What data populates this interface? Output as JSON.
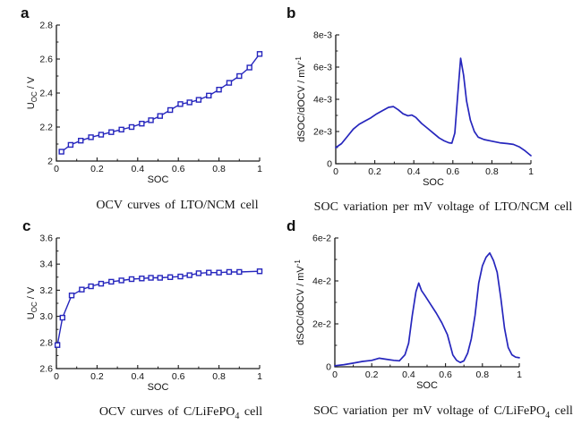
{
  "colors": {
    "curve": "#2626bd",
    "axis": "#1b1b1b",
    "text": "#111111",
    "background": "#ffffff"
  },
  "chart_data": [
    {
      "id": "a",
      "panel_label": "a",
      "type": "line",
      "xlabel": "SOC",
      "ylabel_parts": [
        {
          "t": "U"
        },
        {
          "t": "OC",
          "sub": true
        },
        {
          "t": " / V"
        }
      ],
      "xlim": [
        0,
        1
      ],
      "ylim": [
        2,
        2.8
      ],
      "xtick_values": [
        0,
        0.2,
        0.4,
        0.6,
        0.8,
        1
      ],
      "xtick_labels": [
        "0",
        "0.2",
        "0.4",
        "0.6",
        "0.8",
        "1"
      ],
      "ytick_values": [
        2,
        2.2,
        2.4,
        2.6,
        2.8
      ],
      "ytick_labels": [
        "2",
        "2.2",
        "2.4",
        "2.6",
        "2.8"
      ],
      "marker": "square",
      "grid": false,
      "x": [
        0.025,
        0.07,
        0.12,
        0.17,
        0.22,
        0.27,
        0.32,
        0.37,
        0.42,
        0.465,
        0.51,
        0.56,
        0.61,
        0.655,
        0.7,
        0.75,
        0.8,
        0.85,
        0.9,
        0.95,
        1.0
      ],
      "y": [
        2.055,
        2.095,
        2.12,
        2.14,
        2.155,
        2.17,
        2.185,
        2.2,
        2.22,
        2.24,
        2.265,
        2.3,
        2.335,
        2.345,
        2.36,
        2.385,
        2.42,
        2.46,
        2.5,
        2.55,
        2.63
      ],
      "caption_parts": [
        {
          "t": "OCV curves of LTO/NCM cell"
        }
      ]
    },
    {
      "id": "b",
      "panel_label": "b",
      "type": "line",
      "xlabel": "SOC",
      "ylabel_parts": [
        {
          "t": "dSOC/dOCV / mV"
        },
        {
          "t": "-1",
          "sup": true
        }
      ],
      "xlim": [
        0,
        1
      ],
      "ylim": [
        0,
        0.008
      ],
      "xtick_values": [
        0,
        0.2,
        0.4,
        0.6,
        0.8,
        1
      ],
      "xtick_labels": [
        "0",
        "0.2",
        "0.4",
        "0.6",
        "0.8",
        "1"
      ],
      "ytick_values": [
        0,
        0.002,
        0.004,
        0.006,
        0.008
      ],
      "ytick_labels": [
        "0",
        "2e-3",
        "4e-3",
        "6e-3",
        "8e-3"
      ],
      "marker": null,
      "grid": false,
      "x": [
        0,
        0.03,
        0.06,
        0.09,
        0.12,
        0.15,
        0.18,
        0.21,
        0.24,
        0.27,
        0.295,
        0.32,
        0.345,
        0.37,
        0.39,
        0.41,
        0.44,
        0.47,
        0.5,
        0.53,
        0.555,
        0.58,
        0.595,
        0.61,
        0.625,
        0.64,
        0.655,
        0.67,
        0.69,
        0.71,
        0.73,
        0.76,
        0.8,
        0.84,
        0.88,
        0.91,
        0.94,
        0.97,
        1.0
      ],
      "y": [
        0.001,
        0.00125,
        0.0017,
        0.00215,
        0.00245,
        0.00265,
        0.00285,
        0.0031,
        0.0033,
        0.0035,
        0.00355,
        0.00335,
        0.0031,
        0.00298,
        0.00302,
        0.00288,
        0.0025,
        0.0022,
        0.0019,
        0.0016,
        0.00142,
        0.0013,
        0.00128,
        0.0019,
        0.0043,
        0.00655,
        0.0055,
        0.0039,
        0.0027,
        0.002,
        0.00165,
        0.0015,
        0.0014,
        0.0013,
        0.00125,
        0.0012,
        0.00105,
        0.0008,
        0.0005
      ],
      "caption_parts": [
        {
          "t": "SOC variation per mV voltage of LTO/NCM cell"
        }
      ]
    },
    {
      "id": "c",
      "panel_label": "c",
      "type": "line",
      "xlabel": "SOC",
      "ylabel_parts": [
        {
          "t": "U"
        },
        {
          "t": "OC",
          "sub": true
        },
        {
          "t": " / V"
        }
      ],
      "xlim": [
        0,
        1
      ],
      "ylim": [
        2.6,
        3.6
      ],
      "xtick_values": [
        0,
        0.2,
        0.4,
        0.6,
        0.8,
        1
      ],
      "xtick_labels": [
        "0",
        "0.2",
        "0.4",
        "0.6",
        "0.8",
        "1"
      ],
      "ytick_values": [
        2.6,
        2.8,
        3.0,
        3.2,
        3.4,
        3.6
      ],
      "ytick_labels": [
        "2.6",
        "2.8",
        "3.0",
        "3.2",
        "3.4",
        "3.6"
      ],
      "marker": "square",
      "grid": false,
      "x": [
        0.005,
        0.03,
        0.075,
        0.125,
        0.17,
        0.22,
        0.27,
        0.32,
        0.37,
        0.42,
        0.465,
        0.51,
        0.56,
        0.61,
        0.655,
        0.7,
        0.75,
        0.8,
        0.85,
        0.9,
        1.0
      ],
      "y": [
        2.78,
        2.99,
        3.16,
        3.205,
        3.23,
        3.25,
        3.265,
        3.275,
        3.285,
        3.29,
        3.295,
        3.295,
        3.3,
        3.305,
        3.315,
        3.33,
        3.335,
        3.335,
        3.34,
        3.34,
        3.345
      ],
      "caption_parts": [
        {
          "t": "OCV curves of C/LiFePO"
        },
        {
          "t": "4",
          "sub": true
        },
        {
          "t": " cell"
        }
      ]
    },
    {
      "id": "d",
      "panel_label": "d",
      "type": "line",
      "xlabel": "SOC",
      "ylabel_parts": [
        {
          "t": "dSOC/dOCV / mV"
        },
        {
          "t": "-1",
          "sup": true
        }
      ],
      "xlim": [
        0,
        1
      ],
      "ylim": [
        0,
        0.06
      ],
      "xtick_values": [
        0,
        0.2,
        0.4,
        0.6,
        0.8,
        1
      ],
      "xtick_labels": [
        "0",
        "0.2",
        "0.4",
        "0.6",
        "0.8",
        "1"
      ],
      "ytick_values": [
        0,
        0.02,
        0.04,
        0.06
      ],
      "ytick_labels": [
        "0",
        "2e-2",
        "4e-2",
        "6e-2"
      ],
      "marker": null,
      "grid": false,
      "x": [
        0,
        0.05,
        0.1,
        0.15,
        0.2,
        0.24,
        0.28,
        0.32,
        0.35,
        0.38,
        0.4,
        0.42,
        0.44,
        0.455,
        0.47,
        0.49,
        0.52,
        0.55,
        0.58,
        0.61,
        0.64,
        0.66,
        0.68,
        0.7,
        0.72,
        0.74,
        0.76,
        0.78,
        0.8,
        0.82,
        0.84,
        0.86,
        0.88,
        0.9,
        0.92,
        0.94,
        0.96,
        0.98,
        1.0
      ],
      "y": [
        0.0005,
        0.001,
        0.0017,
        0.0025,
        0.003,
        0.004,
        0.0035,
        0.003,
        0.0028,
        0.0056,
        0.011,
        0.024,
        0.035,
        0.039,
        0.0355,
        0.033,
        0.029,
        0.025,
        0.0205,
        0.015,
        0.0055,
        0.003,
        0.002,
        0.0028,
        0.0063,
        0.013,
        0.024,
        0.039,
        0.047,
        0.051,
        0.053,
        0.0495,
        0.044,
        0.032,
        0.018,
        0.009,
        0.0056,
        0.0045,
        0.0042
      ],
      "caption_parts": [
        {
          "t": "SOC variation per mV voltage of C/LiFePO"
        },
        {
          "t": "4",
          "sub": true
        },
        {
          "t": " cell"
        }
      ]
    }
  ]
}
